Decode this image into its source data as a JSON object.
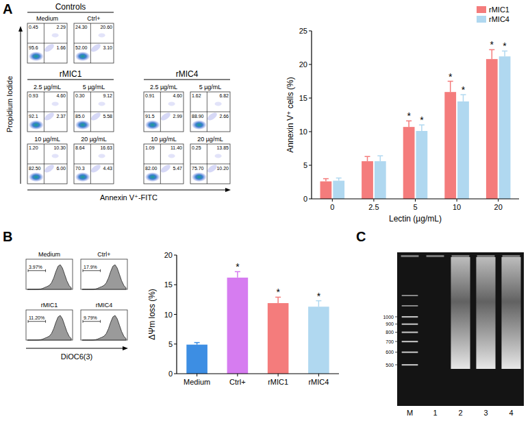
{
  "panel_letters": [
    "A",
    "B",
    "C"
  ],
  "flow_cytometry": {
    "y_label": "Propidium Iodide",
    "x_label": "Annexin V⁺-FITC",
    "groups": [
      {
        "title": "Controls",
        "plots": [
          {
            "label": "Medium",
            "quadrants": {
              "ul": "0.45",
              "ur": "2.29",
              "ll": "95.6",
              "lr": "1.66"
            }
          },
          {
            "label": "Ctrl+",
            "quadrants": {
              "ul": "24.30",
              "ur": "20.60",
              "ll": "52.00",
              "lr": "3.10"
            }
          }
        ]
      },
      {
        "title": "rMIC1",
        "plots": [
          {
            "label": "2.5 µg/mL",
            "quadrants": {
              "ul": "0.93",
              "ur": "4.60",
              "ll": "92.1",
              "lr": "2.37"
            }
          },
          {
            "label": "5 µg/mL",
            "quadrants": {
              "ul": "0.30",
              "ur": "9.12",
              "ll": "85.0",
              "lr": "5.58"
            }
          },
          {
            "label": "10 µg/mL",
            "quadrants": {
              "ul": "1.20",
              "ur": "10.30",
              "ll": "82.50",
              "lr": "6.00"
            }
          },
          {
            "label": "20 µg/mL",
            "quadrants": {
              "ul": "8.64",
              "ur": "16.63",
              "ll": "70.3",
              "lr": "4.43"
            }
          }
        ]
      },
      {
        "title": "rMIC4",
        "plots": [
          {
            "label": "2.5 µg/mL",
            "quadrants": {
              "ul": "0.91",
              "ur": "4.60",
              "ll": "91.5",
              "lr": "2.99"
            }
          },
          {
            "label": "5 µg/mL",
            "quadrants": {
              "ul": "1.62",
              "ur": "6.82",
              "ll": "88.90",
              "lr": "2.66"
            }
          },
          {
            "label": "10 µg/mL",
            "quadrants": {
              "ul": "1.09",
              "ur": "11.40",
              "ll": "82.00",
              "lr": "5.47"
            }
          },
          {
            "label": "20 µg/mL",
            "quadrants": {
              "ul": "0.25",
              "ur": "13.85",
              "ll": "75.70",
              "lr": "10.20"
            }
          }
        ]
      }
    ]
  },
  "chart_data": [
    {
      "type": "bar",
      "categories": [
        "0",
        "2.5",
        "5",
        "10",
        "20"
      ],
      "x_label": "Lectin (µg/mL)",
      "y_label": "Annexin V⁺ cells (%)",
      "ylim": [
        0,
        25
      ],
      "yticks": [
        0,
        5,
        10,
        15,
        20,
        25
      ],
      "legend": "top-right",
      "series": [
        {
          "name": "rMIC1",
          "color": "#f47c7c",
          "values": [
            2.6,
            5.6,
            10.7,
            15.9,
            20.8
          ],
          "errors": [
            0.4,
            0.7,
            0.9,
            1.6,
            1.4
          ],
          "significance": [
            null,
            null,
            "*",
            "*",
            "*"
          ]
        },
        {
          "name": "rMIC4",
          "color": "#b0d8f0",
          "values": [
            2.7,
            5.6,
            10.1,
            14.5,
            21.2
          ],
          "errors": [
            0.4,
            0.8,
            0.9,
            1.0,
            0.8
          ],
          "significance": [
            null,
            null,
            "*",
            "*",
            "*"
          ]
        }
      ]
    },
    {
      "type": "bar",
      "categories": [
        "Medium",
        "Ctrl+",
        "rMIC1",
        "rMIC4"
      ],
      "y_label": "ΔΨm loss (%)",
      "ylim": [
        0,
        20
      ],
      "yticks": [
        0,
        5,
        10,
        15,
        20
      ],
      "values": [
        4.9,
        16.2,
        11.9,
        11.3
      ],
      "errors": [
        0.35,
        1.0,
        1.0,
        1.0
      ],
      "colors": [
        "#3d8ee3",
        "#d67cf0",
        "#f47c7c",
        "#b0d8f0"
      ],
      "significance": [
        null,
        "*",
        "*",
        "*"
      ]
    }
  ],
  "histograms": {
    "x_label": "DiOC6(3)",
    "plots": [
      {
        "label": "Medium",
        "gate": "3.97%"
      },
      {
        "label": "Ctrl+",
        "gate": "17.9%"
      },
      {
        "label": "rMIC1",
        "gate": "11.20%"
      },
      {
        "label": "rMIC4",
        "gate": "9.79%"
      }
    ]
  },
  "gel": {
    "ladder": [
      1000,
      900,
      800,
      700,
      600,
      500
    ],
    "lanes": [
      "M",
      "1",
      "2",
      "3",
      "4"
    ]
  }
}
